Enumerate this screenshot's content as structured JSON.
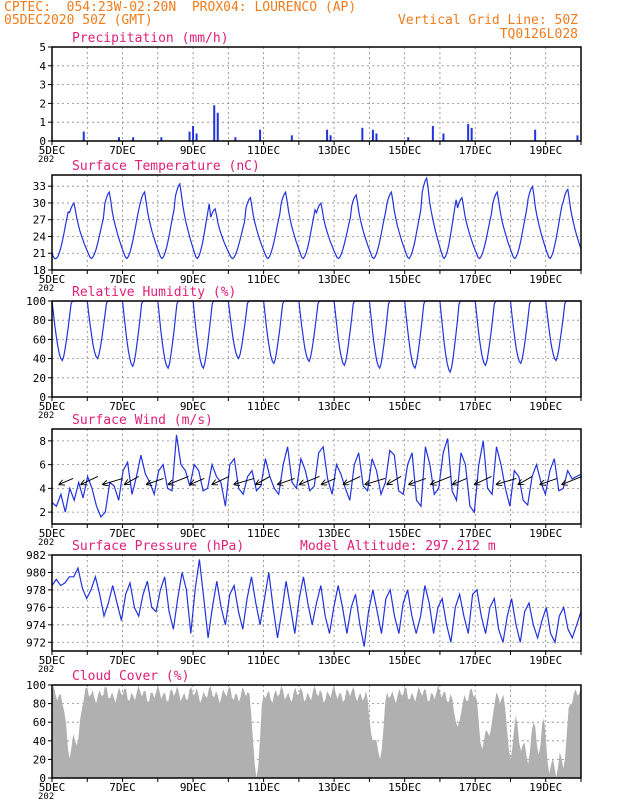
{
  "header": {
    "line1_left": "CPTEC:  054:23W-02:20N  PROX04: LOURENCO (AP)",
    "line2_left": "05DEC2020 50Z (GMT)",
    "line2_right": "Vertical Grid Line: 50Z",
    "line3_right": "TQ0126L028",
    "model_altitude": "Model Altitude: 297.212 m"
  },
  "colors": {
    "header": "#f07c1c",
    "title": "#e0207a",
    "series": "#2233dd",
    "cloud": "#b0b0b0",
    "arrow": "#000000"
  },
  "x_axis": {
    "start": "05DEC2020",
    "days": 15,
    "tick_labels": [
      "5DEC",
      "7DEC",
      "9DEC",
      "11DEC",
      "13DEC",
      "15DEC",
      "17DEC",
      "19DEC"
    ],
    "year_stub": "202"
  },
  "chart_data": [
    {
      "type": "bar",
      "title": "Precipitation (mm/h)",
      "ylim": [
        0,
        5
      ],
      "yticks": [
        "0",
        "1",
        "2",
        "3",
        "4",
        "5"
      ],
      "grid": true,
      "events": [
        {
          "day": 0.9,
          "v": 0.5
        },
        {
          "day": 1.9,
          "v": 0.2
        },
        {
          "day": 2.3,
          "v": 0.2
        },
        {
          "day": 3.1,
          "v": 0.2
        },
        {
          "day": 3.9,
          "v": 0.5
        },
        {
          "day": 4.0,
          "v": 0.8
        },
        {
          "day": 4.1,
          "v": 0.4
        },
        {
          "day": 4.6,
          "v": 1.9
        },
        {
          "day": 4.7,
          "v": 1.5
        },
        {
          "day": 5.2,
          "v": 0.2
        },
        {
          "day": 5.9,
          "v": 0.6
        },
        {
          "day": 6.8,
          "v": 0.3
        },
        {
          "day": 7.8,
          "v": 0.6
        },
        {
          "day": 7.9,
          "v": 0.3
        },
        {
          "day": 8.8,
          "v": 0.7
        },
        {
          "day": 9.1,
          "v": 0.6
        },
        {
          "day": 9.2,
          "v": 0.4
        },
        {
          "day": 10.1,
          "v": 0.2
        },
        {
          "day": 10.8,
          "v": 0.8
        },
        {
          "day": 11.1,
          "v": 0.4
        },
        {
          "day": 11.8,
          "v": 0.9
        },
        {
          "day": 11.9,
          "v": 0.7
        },
        {
          "day": 13.7,
          "v": 0.6
        },
        {
          "day": 14.9,
          "v": 0.3
        }
      ]
    },
    {
      "type": "line",
      "title": "Surface Temperature (nC)",
      "ylim": [
        18,
        35
      ],
      "yticks": [
        "18",
        "21",
        "24",
        "27",
        "30",
        "33"
      ],
      "grid": true,
      "base": 20,
      "peaks": [
        31.5,
        30,
        32,
        32,
        33.5,
        29,
        31,
        32,
        30,
        31.5,
        32,
        34.5,
        31,
        32,
        33,
        32.5
      ]
    },
    {
      "type": "line",
      "title": "Relative Humidity (%)",
      "ylim": [
        0,
        100
      ],
      "yticks": [
        "0",
        "20",
        "40",
        "60",
        "80",
        "100"
      ],
      "grid": true,
      "peak": 100,
      "troughs": [
        38,
        40,
        32,
        30,
        30,
        40,
        35,
        37,
        33,
        30,
        30,
        26,
        33,
        35,
        38,
        38
      ]
    },
    {
      "type": "line",
      "title": "Surface Wind (m/s)",
      "ylim": [
        1,
        9
      ],
      "yticks": [
        "2",
        "4",
        "6",
        "8"
      ],
      "grid": true,
      "values": [
        2.8,
        2.5,
        3.5,
        2.0,
        4.0,
        3.0,
        4.5,
        3.2,
        5.0,
        4.0,
        2.5,
        1.6,
        2.0,
        4.5,
        4.2,
        3.0,
        5.5,
        6.2,
        3.5,
        5.0,
        6.8,
        5.2,
        4.5,
        3.5,
        5.5,
        6.0,
        4.0,
        3.8,
        8.5,
        6.0,
        5.5,
        4.2,
        6.0,
        5.5,
        3.8,
        4.0,
        6.0,
        5.0,
        4.5,
        2.5,
        6.0,
        6.5,
        4.0,
        3.5,
        5.0,
        5.5,
        3.8,
        4.2,
        6.5,
        5.0,
        4.0,
        3.5,
        6.0,
        7.5,
        4.5,
        4.0,
        6.5,
        5.5,
        3.8,
        4.2,
        7.0,
        7.5,
        4.8,
        3.5,
        6.0,
        5.2,
        4.0,
        3.0,
        6.0,
        7.0,
        4.2,
        3.8,
        6.5,
        5.5,
        3.5,
        4.5,
        7.2,
        6.8,
        3.8,
        3.5,
        6.0,
        7.0,
        3.0,
        2.5,
        7.5,
        6.0,
        3.5,
        4.0,
        7.0,
        8.2,
        3.8,
        3.0,
        7.0,
        6.0,
        2.5,
        2.0,
        6.0,
        8.0,
        4.0,
        3.5,
        7.5,
        6.0,
        4.0,
        2.5,
        5.5,
        5.0,
        3.0,
        2.6,
        5.0,
        6.0,
        4.5,
        3.5,
        5.5,
        6.5,
        3.8,
        4.0,
        5.5,
        4.8,
        5.0,
        5.2
      ]
    },
    {
      "type": "line",
      "title": "Surface Pressure (hPa)",
      "ylim": [
        971,
        982
      ],
      "yticks": [
        "972",
        "974",
        "976",
        "978",
        "980",
        "982"
      ],
      "grid": true,
      "values": [
        978.5,
        979.2,
        978.5,
        978.8,
        979.5,
        979.5,
        980.5,
        978.2,
        977.0,
        978.0,
        979.5,
        977.5,
        975.0,
        976.5,
        978.5,
        976.5,
        974.5,
        977.5,
        978.8,
        976.0,
        975.0,
        977.5,
        979.0,
        976.0,
        975.5,
        978.0,
        979.5,
        975.5,
        973.5,
        977.0,
        980.0,
        978.0,
        973.0,
        978.0,
        981.5,
        977.0,
        972.5,
        976.0,
        979.0,
        976.0,
        974.0,
        977.5,
        978.5,
        975.5,
        973.5,
        977.0,
        979.5,
        976.5,
        974.0,
        977.0,
        980.0,
        976.0,
        972.5,
        975.5,
        979.0,
        976.0,
        973.0,
        977.0,
        979.5,
        976.5,
        974.0,
        976.5,
        978.5,
        975.0,
        973.0,
        976.0,
        978.5,
        976.0,
        973.0,
        976.0,
        977.5,
        974.0,
        971.5,
        975.5,
        978.0,
        975.5,
        973.0,
        977.0,
        978.0,
        975.0,
        973.0,
        976.5,
        978.0,
        975.0,
        973.0,
        975.0,
        978.5,
        976.5,
        973.0,
        976.0,
        977.0,
        974.0,
        972.0,
        976.0,
        977.5,
        975.0,
        973.0,
        977.5,
        978.0,
        975.0,
        973.0,
        976.0,
        977.0,
        973.5,
        972.0,
        975.0,
        977.0,
        974.0,
        972.0,
        975.5,
        976.5,
        974.0,
        972.5,
        974.5,
        976.0,
        973.0,
        972.0,
        975.0,
        976.0,
        973.5,
        972.5,
        974.0,
        975.5
      ]
    },
    {
      "type": "area",
      "title": "Cloud Cover (%)",
      "ylim": [
        0,
        100
      ],
      "yticks": [
        "0",
        "20",
        "40",
        "60",
        "80",
        "100"
      ],
      "grid": true,
      "typical": 90,
      "dips": [
        {
          "day": 0.5,
          "v": 20
        },
        {
          "day": 0.7,
          "v": 35
        },
        {
          "day": 5.8,
          "v": 0
        },
        {
          "day": 9.1,
          "v": 40
        },
        {
          "day": 9.3,
          "v": 20
        },
        {
          "day": 11.5,
          "v": 55
        },
        {
          "day": 12.2,
          "v": 30
        },
        {
          "day": 12.4,
          "v": 45
        },
        {
          "day": 13.0,
          "v": 20
        },
        {
          "day": 13.3,
          "v": 30
        },
        {
          "day": 13.5,
          "v": 15
        },
        {
          "day": 13.8,
          "v": 25
        },
        {
          "day": 14.1,
          "v": 5
        },
        {
          "day": 14.3,
          "v": 0
        },
        {
          "day": 14.5,
          "v": 10
        }
      ]
    }
  ]
}
